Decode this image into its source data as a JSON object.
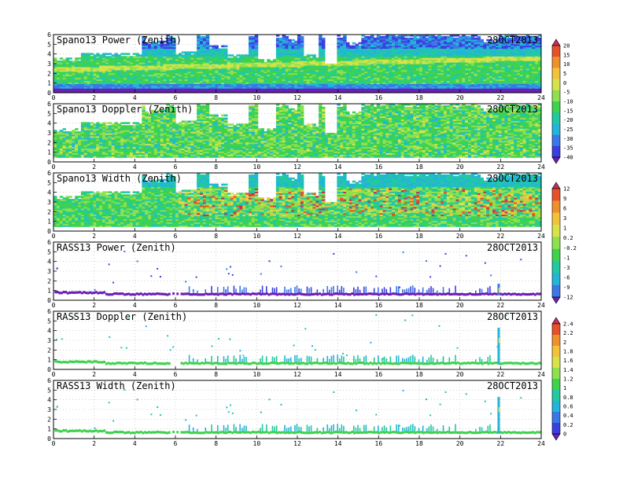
{
  "figure": {
    "date_label": "28OCT2013"
  },
  "colors": {
    "background": "#ffffff",
    "frame": "#000000",
    "grid": "#b8b8b8",
    "power_palette": [
      "#6a1fb5",
      "#3b3fe0",
      "#3a78e8",
      "#22b5d8",
      "#22c9a0",
      "#3ed24e",
      "#8ee04e",
      "#d8e24a",
      "#f2c23a",
      "#f0902c",
      "#e8502a",
      "#c42f5a"
    ],
    "width_palette": [
      "#6a1fb5",
      "#3b3fe0",
      "#3a78e8",
      "#22b5d8",
      "#22c9a0",
      "#3ed24e",
      "#8ee04e",
      "#d8e24a",
      "#f2c23a",
      "#f0902c",
      "#e8502a",
      "#c42f5a"
    ],
    "rass_palette": [
      "#6a1fb5",
      "#3b3fe0",
      "#3a78e8",
      "#22b5d8",
      "#22c9a0",
      "#3ed24e",
      "#8ee04e",
      "#d8e24a",
      "#f2c23a",
      "#f0902c",
      "#e8502a",
      "#c42f5a"
    ]
  },
  "chart_data": [
    {
      "type": "heatmap",
      "title": "Spano13 Power (Zenith)",
      "date": "28OCT2013",
      "xlim": [
        0,
        24
      ],
      "ylim": [
        0,
        6
      ],
      "xticks": [
        "0",
        "2",
        "4",
        "6",
        "8",
        "10",
        "12",
        "14",
        "16",
        "18",
        "20",
        "22",
        "24"
      ],
      "yticks": [
        "0",
        "1",
        "2",
        "3",
        "4",
        "5",
        "6"
      ],
      "grid": true,
      "kind": "spano_power"
    },
    {
      "type": "heatmap",
      "title": "Spano13 Doppler (Zenith)",
      "date": "28OCT2013",
      "xlim": [
        0,
        24
      ],
      "ylim": [
        0,
        6
      ],
      "xticks": [
        "0",
        "2",
        "4",
        "6",
        "8",
        "10",
        "12",
        "14",
        "16",
        "18",
        "20",
        "22",
        "24"
      ],
      "yticks": [
        "0",
        "1",
        "2",
        "3",
        "4",
        "5",
        "6"
      ],
      "grid": true,
      "kind": "spano_doppler"
    },
    {
      "type": "heatmap",
      "title": "Spano13 Width (Zenith)",
      "date": "28OCT2013",
      "xlim": [
        0,
        24
      ],
      "ylim": [
        0,
        6
      ],
      "xticks": [
        "0",
        "2",
        "4",
        "6",
        "8",
        "10",
        "12",
        "14",
        "16",
        "18",
        "20",
        "22",
        "24"
      ],
      "yticks": [
        "0",
        "1",
        "2",
        "3",
        "4",
        "5",
        "6"
      ],
      "grid": true,
      "kind": "spano_width"
    },
    {
      "type": "heatmap",
      "title": "RASS13 Power (Zenith)",
      "date": "28OCT2013",
      "xlim": [
        0,
        24
      ],
      "ylim": [
        0,
        6
      ],
      "xticks": [
        "0",
        "2",
        "4",
        "6",
        "8",
        "10",
        "12",
        "14",
        "16",
        "18",
        "20",
        "22",
        "24"
      ],
      "yticks": [
        "0",
        "1",
        "2",
        "3",
        "4",
        "5",
        "6"
      ],
      "grid": true,
      "kind": "rass_power"
    },
    {
      "type": "heatmap",
      "title": "RASS13 Doppler (Zenith)",
      "date": "28OCT2013",
      "xlim": [
        0,
        24
      ],
      "ylim": [
        0,
        6
      ],
      "xticks": [
        "0",
        "2",
        "4",
        "6",
        "8",
        "10",
        "12",
        "14",
        "16",
        "18",
        "20",
        "22",
        "24"
      ],
      "yticks": [
        "0",
        "1",
        "2",
        "3",
        "4",
        "5",
        "6"
      ],
      "grid": true,
      "kind": "rass_doppler"
    },
    {
      "type": "heatmap",
      "title": "RASS13 Width (Zenith)",
      "date": "28OCT2013",
      "xlim": [
        0,
        24
      ],
      "ylim": [
        0,
        6
      ],
      "xticks": [
        "0",
        "2",
        "4",
        "6",
        "8",
        "10",
        "12",
        "14",
        "16",
        "18",
        "20",
        "22",
        "24"
      ],
      "yticks": [
        "0",
        "1",
        "2",
        "3",
        "4",
        "5",
        "6"
      ],
      "grid": true,
      "kind": "rass_width"
    }
  ],
  "colorbars": [
    {
      "id": "spano_power_doppler",
      "labels": [
        "20",
        "15",
        "10",
        "5",
        "0",
        "-5",
        "-10",
        "-15",
        "-20",
        "-25",
        "-30",
        "-35",
        "-40"
      ],
      "colors": [
        "#c42f5a",
        "#e8502a",
        "#f0902c",
        "#f2c23a",
        "#d8e24a",
        "#8ee04e",
        "#3ed24e",
        "#22c9a0",
        "#22b5d8",
        "#3a78e8",
        "#3b3fe0",
        "#6a1fb5"
      ]
    },
    {
      "id": "spano_width_rass_power",
      "labels": [
        "12",
        "9",
        "6",
        "3",
        "1",
        "0.2",
        "-0.2",
        "-1",
        "-3",
        "-6",
        "-9",
        "-12"
      ],
      "colors": [
        "#c42f5a",
        "#e8502a",
        "#f0902c",
        "#f2c23a",
        "#d8e24a",
        "#8ee04e",
        "#3ed24e",
        "#22c9a0",
        "#22b5d8",
        "#3a78e8",
        "#6a1fb5"
      ]
    },
    {
      "id": "rass_doppler_width",
      "labels": [
        "2.4",
        "2.2",
        "2",
        "1.8",
        "1.6",
        "1.4",
        "1.2",
        "1",
        "0.8",
        "0.6",
        "0.4",
        "0.2",
        "0"
      ],
      "colors": [
        "#c42f5a",
        "#e8502a",
        "#f0902c",
        "#f2c23a",
        "#d8e24a",
        "#8ee04e",
        "#3ed24e",
        "#22c9a0",
        "#22b5d8",
        "#3a78e8",
        "#3b3fe0",
        "#6a1fb5"
      ]
    }
  ]
}
